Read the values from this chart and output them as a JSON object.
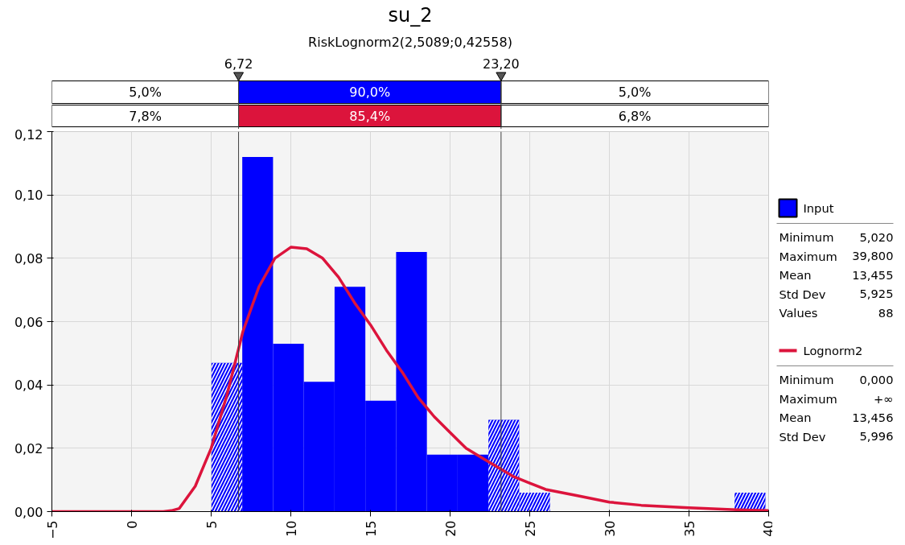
{
  "chart_data": {
    "type": "histogram",
    "title": "su_2",
    "subtitle": "RiskLognorm2(2,5089;0,42558)",
    "series": [
      {
        "name": "Input",
        "color": "#0000ff",
        "bins": [
          5.02,
          6.952,
          8.884,
          10.816,
          12.748,
          14.68,
          16.612,
          18.544,
          20.476,
          22.408,
          24.34,
          26.272,
          28.204,
          30.136,
          32.068,
          34.0,
          35.932,
          37.864,
          39.8
        ],
        "values": [
          0.047,
          0.112,
          0.053,
          0.041,
          0.071,
          0.035,
          0.082,
          0.018,
          0.018,
          0.029,
          0.006,
          0,
          0,
          0,
          0,
          0,
          0,
          0.006
        ]
      },
      {
        "name": "Lognorm2",
        "type": "line",
        "color": "#dc143c",
        "x": [
          -5,
          -2,
          0,
          2,
          2.5,
          3,
          4,
          5,
          6,
          7,
          8,
          9,
          10,
          11,
          12,
          13,
          14,
          15,
          16,
          17,
          18,
          19,
          20,
          21,
          22,
          23,
          24,
          25,
          26,
          28,
          30,
          32,
          35,
          38,
          40
        ],
        "values": [
          0,
          0,
          0,
          0,
          0.0003,
          0.001,
          0.008,
          0.02,
          0.037,
          0.057,
          0.071,
          0.08,
          0.0835,
          0.083,
          0.08,
          0.074,
          0.066,
          0.059,
          0.051,
          0.044,
          0.036,
          0.03,
          0.025,
          0.02,
          0.017,
          0.014,
          0.011,
          0.009,
          0.007,
          0.005,
          0.003,
          0.002,
          0.0012,
          0.0006,
          0.0003
        ]
      }
    ],
    "xlim": [
      -5,
      40
    ],
    "xticks": [
      -5,
      0,
      5,
      10,
      15,
      20,
      25,
      30,
      35,
      40
    ],
    "ylim": [
      0,
      0.12
    ],
    "yticks": [
      {
        "value": 0,
        "label": "0,00"
      },
      {
        "value": 0.02,
        "label": "0,02"
      },
      {
        "value": 0.04,
        "label": "0,04"
      },
      {
        "value": 0.06,
        "label": "0,06"
      },
      {
        "value": 0.08,
        "label": "0,08"
      },
      {
        "value": 0.1,
        "label": "0,10"
      },
      {
        "value": 0.12,
        "label": "0,12"
      }
    ],
    "ref_lines": [
      {
        "axis": "x",
        "value": 6.72,
        "label": "6,72",
        "color": "#404040"
      },
      {
        "axis": "x",
        "value": 23.2,
        "label": "23,20",
        "color": "#404040"
      }
    ],
    "annotations": [
      "5,0%",
      "90,0%",
      "5,0%",
      "7,8%",
      "85,4%",
      "6,8%",
      "Minimum 5,020",
      "Maximum 39,800",
      "Mean 13,455",
      "Std Dev 5,925",
      "Values 88",
      "Minimum 0,000",
      "Maximum +∞",
      "Mean 13,456",
      "Std Dev 5,996"
    ],
    "grid": true,
    "legend": "right",
    "line_style": "solid"
  }
}
